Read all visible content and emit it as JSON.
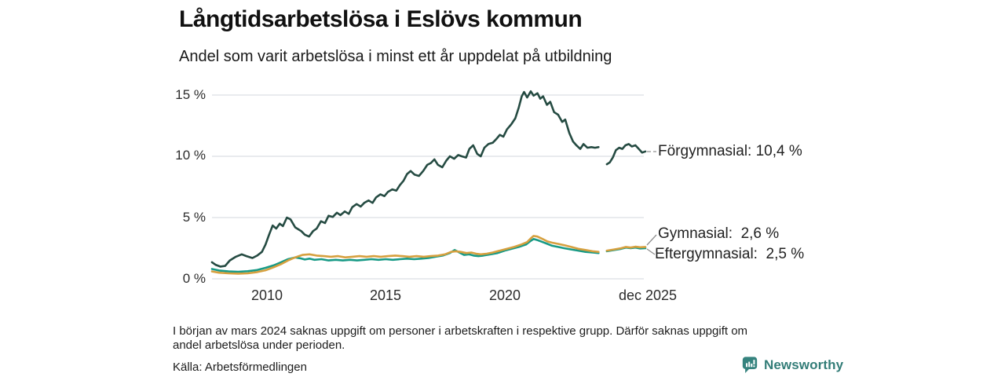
{
  "header": {
    "title": "Långtidsarbetslösa i Eslövs kommun",
    "subtitle": "Andel som varit arbetslösa i minst ett år uppdelat på utbildning"
  },
  "footnote": {
    "lines": [
      "I början av mars 2024 saknas uppgift om personer i arbetskraften i respektive grupp. Därför saknas uppgift om",
      "andel arbetslösa under perioden."
    ]
  },
  "source": "Källa: Arbetsförmedlingen",
  "logo": {
    "name": "Newsworthy",
    "color": "#35837e"
  },
  "chart_data": {
    "type": "line",
    "title": "Långtidsarbetslösa i Eslövs kommun",
    "subtitle": "Andel som varit arbetslösa i minst ett år uppdelat på utbildning",
    "xlim": [
      2007.7,
      2025.92
    ],
    "ylim": [
      0,
      15
    ],
    "grid": true,
    "y_ticks": [
      {
        "label": "15 %",
        "value": 15
      },
      {
        "label": "10 %",
        "value": 10
      },
      {
        "label": "5 %",
        "value": 5
      },
      {
        "label": "0 %",
        "value": 0
      }
    ],
    "x_ticks": [
      {
        "label": "2010",
        "year": 2010
      },
      {
        "label": "2015",
        "year": 2015
      },
      {
        "label": "2020",
        "year": 2020
      },
      {
        "label": "dec 2025",
        "year": 2025.92
      }
    ],
    "gap_period": "mars 2024",
    "series": [
      {
        "name": "Förgymnasial",
        "color": "#254b42",
        "final_value": "10,4 %",
        "annotation": "Förgymnasial: 10,4 %",
        "segments": [
          [
            [
              2007.7,
              1.35
            ],
            [
              2007.85,
              1.15
            ],
            [
              2008.05,
              1.0
            ],
            [
              2008.25,
              1.05
            ],
            [
              2008.45,
              1.5
            ],
            [
              2008.7,
              1.8
            ],
            [
              2008.95,
              2.0
            ],
            [
              2009.15,
              1.85
            ],
            [
              2009.4,
              1.7
            ],
            [
              2009.6,
              1.9
            ],
            [
              2009.8,
              2.2
            ],
            [
              2009.95,
              2.8
            ],
            [
              2010.1,
              3.6
            ],
            [
              2010.25,
              4.35
            ],
            [
              2010.4,
              4.1
            ],
            [
              2010.55,
              4.5
            ],
            [
              2010.68,
              4.3
            ],
            [
              2010.85,
              5.0
            ],
            [
              2011.0,
              4.85
            ],
            [
              2011.2,
              4.2
            ],
            [
              2011.45,
              3.9
            ],
            [
              2011.6,
              3.6
            ],
            [
              2011.78,
              3.45
            ],
            [
              2011.95,
              3.9
            ],
            [
              2012.1,
              4.1
            ],
            [
              2012.28,
              4.7
            ],
            [
              2012.45,
              4.55
            ],
            [
              2012.6,
              5.15
            ],
            [
              2012.78,
              5.05
            ],
            [
              2012.95,
              5.4
            ],
            [
              2013.1,
              5.2
            ],
            [
              2013.28,
              5.5
            ],
            [
              2013.45,
              5.3
            ],
            [
              2013.6,
              5.85
            ],
            [
              2013.78,
              6.1
            ],
            [
              2013.95,
              5.9
            ],
            [
              2014.1,
              6.2
            ],
            [
              2014.28,
              6.4
            ],
            [
              2014.45,
              6.2
            ],
            [
              2014.6,
              6.65
            ],
            [
              2014.78,
              6.9
            ],
            [
              2014.95,
              6.75
            ],
            [
              2015.1,
              7.1
            ],
            [
              2015.28,
              7.3
            ],
            [
              2015.45,
              7.2
            ],
            [
              2015.6,
              7.65
            ],
            [
              2015.75,
              8.0
            ],
            [
              2015.9,
              8.55
            ],
            [
              2016.05,
              8.8
            ],
            [
              2016.22,
              8.5
            ],
            [
              2016.4,
              8.4
            ],
            [
              2016.58,
              8.8
            ],
            [
              2016.75,
              9.3
            ],
            [
              2016.9,
              9.45
            ],
            [
              2017.05,
              9.75
            ],
            [
              2017.2,
              9.3
            ],
            [
              2017.38,
              9.1
            ],
            [
              2017.55,
              9.65
            ],
            [
              2017.7,
              10.0
            ],
            [
              2017.88,
              9.8
            ],
            [
              2018.05,
              10.1
            ],
            [
              2018.2,
              10.0
            ],
            [
              2018.38,
              9.9
            ],
            [
              2018.52,
              10.6
            ],
            [
              2018.68,
              10.9
            ],
            [
              2018.85,
              10.2
            ],
            [
              2019.0,
              10.0
            ],
            [
              2019.15,
              10.7
            ],
            [
              2019.32,
              11.0
            ],
            [
              2019.5,
              11.1
            ],
            [
              2019.65,
              11.4
            ],
            [
              2019.8,
              11.75
            ],
            [
              2019.95,
              11.6
            ],
            [
              2020.1,
              12.2
            ],
            [
              2020.28,
              12.6
            ],
            [
              2020.45,
              13.1
            ],
            [
              2020.6,
              14.0
            ],
            [
              2020.72,
              14.9
            ],
            [
              2020.82,
              15.25
            ],
            [
              2020.95,
              14.8
            ],
            [
              2021.1,
              15.3
            ],
            [
              2021.22,
              14.95
            ],
            [
              2021.38,
              15.15
            ],
            [
              2021.5,
              14.7
            ],
            [
              2021.62,
              14.9
            ],
            [
              2021.78,
              14.2
            ],
            [
              2021.92,
              14.45
            ],
            [
              2022.08,
              13.6
            ],
            [
              2022.25,
              13.4
            ],
            [
              2022.42,
              12.8
            ],
            [
              2022.55,
              13.0
            ],
            [
              2022.72,
              11.9
            ],
            [
              2022.88,
              11.2
            ],
            [
              2023.02,
              10.9
            ],
            [
              2023.18,
              10.6
            ],
            [
              2023.32,
              11.0
            ],
            [
              2023.48,
              10.7
            ],
            [
              2023.65,
              10.75
            ],
            [
              2023.8,
              10.7
            ],
            [
              2023.95,
              10.75
            ]
          ],
          [
            [
              2024.3,
              9.35
            ],
            [
              2024.42,
              9.5
            ],
            [
              2024.55,
              9.9
            ],
            [
              2024.68,
              10.5
            ],
            [
              2024.82,
              10.7
            ],
            [
              2024.95,
              10.6
            ],
            [
              2025.08,
              10.9
            ],
            [
              2025.22,
              11.0
            ],
            [
              2025.35,
              10.8
            ],
            [
              2025.5,
              10.9
            ],
            [
              2025.62,
              10.65
            ],
            [
              2025.78,
              10.3
            ],
            [
              2025.92,
              10.4
            ]
          ]
        ]
      },
      {
        "name": "Gymnasial",
        "color": "#d6a03f",
        "final_value": "2,6 %",
        "annotation": "Gymnasial:  2,6 %",
        "segments": [
          [
            [
              2007.7,
              0.6
            ],
            [
              2008.0,
              0.5
            ],
            [
              2008.4,
              0.45
            ],
            [
              2008.8,
              0.42
            ],
            [
              2009.2,
              0.45
            ],
            [
              2009.6,
              0.55
            ],
            [
              2009.95,
              0.7
            ],
            [
              2010.3,
              0.95
            ],
            [
              2010.6,
              1.2
            ],
            [
              2010.9,
              1.5
            ],
            [
              2011.2,
              1.75
            ],
            [
              2011.5,
              1.95
            ],
            [
              2011.8,
              2.0
            ],
            [
              2012.1,
              1.9
            ],
            [
              2012.4,
              1.85
            ],
            [
              2012.7,
              1.8
            ],
            [
              2013.0,
              1.85
            ],
            [
              2013.3,
              1.75
            ],
            [
              2013.6,
              1.8
            ],
            [
              2013.9,
              1.85
            ],
            [
              2014.2,
              1.8
            ],
            [
              2014.5,
              1.85
            ],
            [
              2014.8,
              1.8
            ],
            [
              2015.1,
              1.85
            ],
            [
              2015.4,
              1.9
            ],
            [
              2015.7,
              1.85
            ],
            [
              2016.0,
              1.8
            ],
            [
              2016.3,
              1.85
            ],
            [
              2016.6,
              1.8
            ],
            [
              2016.9,
              1.85
            ],
            [
              2017.2,
              1.9
            ],
            [
              2017.5,
              2.0
            ],
            [
              2017.75,
              2.2
            ],
            [
              2017.95,
              2.25
            ],
            [
              2018.15,
              2.2
            ],
            [
              2018.4,
              2.1
            ],
            [
              2018.6,
              2.15
            ],
            [
              2018.8,
              2.05
            ],
            [
              2019.0,
              2.0
            ],
            [
              2019.25,
              2.05
            ],
            [
              2019.5,
              2.15
            ],
            [
              2019.8,
              2.3
            ],
            [
              2020.1,
              2.45
            ],
            [
              2020.4,
              2.6
            ],
            [
              2020.7,
              2.8
            ],
            [
              2020.95,
              3.0
            ],
            [
              2021.1,
              3.3
            ],
            [
              2021.22,
              3.5
            ],
            [
              2021.38,
              3.45
            ],
            [
              2021.6,
              3.25
            ],
            [
              2021.8,
              3.05
            ],
            [
              2022.0,
              2.95
            ],
            [
              2022.25,
              2.85
            ],
            [
              2022.5,
              2.75
            ],
            [
              2022.8,
              2.6
            ],
            [
              2023.1,
              2.45
            ],
            [
              2023.4,
              2.35
            ],
            [
              2023.7,
              2.25
            ],
            [
              2023.95,
              2.2
            ]
          ],
          [
            [
              2024.3,
              2.3
            ],
            [
              2024.6,
              2.4
            ],
            [
              2024.9,
              2.5
            ],
            [
              2025.1,
              2.6
            ],
            [
              2025.3,
              2.55
            ],
            [
              2025.5,
              2.62
            ],
            [
              2025.7,
              2.58
            ],
            [
              2025.92,
              2.6
            ]
          ]
        ]
      },
      {
        "name": "Eftergymnasial",
        "color": "#189a86",
        "final_value": "2,5 %",
        "annotation": "Eftergymnasial:  2,5 %",
        "segments": [
          [
            [
              2007.7,
              0.8
            ],
            [
              2008.0,
              0.68
            ],
            [
              2008.4,
              0.6
            ],
            [
              2008.8,
              0.58
            ],
            [
              2009.2,
              0.62
            ],
            [
              2009.6,
              0.72
            ],
            [
              2009.95,
              0.9
            ],
            [
              2010.3,
              1.1
            ],
            [
              2010.6,
              1.35
            ],
            [
              2010.9,
              1.6
            ],
            [
              2011.2,
              1.75
            ],
            [
              2011.4,
              1.68
            ],
            [
              2011.6,
              1.58
            ],
            [
              2011.8,
              1.65
            ],
            [
              2012.0,
              1.55
            ],
            [
              2012.3,
              1.6
            ],
            [
              2012.6,
              1.5
            ],
            [
              2012.9,
              1.55
            ],
            [
              2013.2,
              1.5
            ],
            [
              2013.5,
              1.55
            ],
            [
              2013.8,
              1.5
            ],
            [
              2014.1,
              1.55
            ],
            [
              2014.4,
              1.6
            ],
            [
              2014.7,
              1.55
            ],
            [
              2015.0,
              1.6
            ],
            [
              2015.3,
              1.55
            ],
            [
              2015.6,
              1.6
            ],
            [
              2015.9,
              1.65
            ],
            [
              2016.2,
              1.6
            ],
            [
              2016.5,
              1.65
            ],
            [
              2016.8,
              1.7
            ],
            [
              2017.1,
              1.8
            ],
            [
              2017.4,
              1.9
            ],
            [
              2017.7,
              2.1
            ],
            [
              2017.9,
              2.35
            ],
            [
              2018.05,
              2.2
            ],
            [
              2018.3,
              1.95
            ],
            [
              2018.5,
              2.0
            ],
            [
              2018.7,
              1.9
            ],
            [
              2018.9,
              1.85
            ],
            [
              2019.1,
              1.9
            ],
            [
              2019.4,
              2.0
            ],
            [
              2019.7,
              2.1
            ],
            [
              2020.0,
              2.3
            ],
            [
              2020.3,
              2.45
            ],
            [
              2020.6,
              2.6
            ],
            [
              2020.9,
              2.8
            ],
            [
              2021.1,
              3.1
            ],
            [
              2021.22,
              3.25
            ],
            [
              2021.4,
              3.15
            ],
            [
              2021.6,
              3.0
            ],
            [
              2021.8,
              2.85
            ],
            [
              2022.0,
              2.7
            ],
            [
              2022.25,
              2.6
            ],
            [
              2022.5,
              2.5
            ],
            [
              2022.8,
              2.4
            ],
            [
              2023.1,
              2.3
            ],
            [
              2023.4,
              2.2
            ],
            [
              2023.7,
              2.15
            ],
            [
              2023.95,
              2.1
            ]
          ],
          [
            [
              2024.3,
              2.25
            ],
            [
              2024.6,
              2.35
            ],
            [
              2024.9,
              2.45
            ],
            [
              2025.1,
              2.55
            ],
            [
              2025.3,
              2.5
            ],
            [
              2025.5,
              2.55
            ],
            [
              2025.7,
              2.48
            ],
            [
              2025.92,
              2.5
            ]
          ]
        ]
      }
    ]
  }
}
